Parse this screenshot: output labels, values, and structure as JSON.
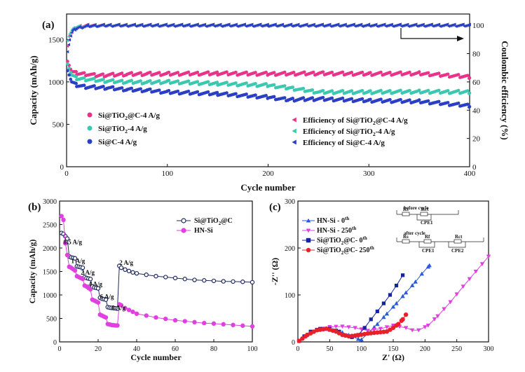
{
  "chart_data": [
    {
      "panel": "(a)",
      "type": "scatter",
      "xlabel": "Cycle number",
      "ylabel": "Capacity (mAh/g)",
      "ylabel_right": "Coulombic efficiency (%)",
      "xlim": [
        0,
        400
      ],
      "ylim": [
        0,
        1800
      ],
      "ylim_right": [
        0,
        108
      ],
      "xticks": [
        "0",
        "100",
        "200",
        "300",
        "400"
      ],
      "yticks": [
        "0",
        "500",
        "1000",
        "1500"
      ],
      "yticks_right": [
        "0",
        "20",
        "40",
        "60",
        "80",
        "100"
      ],
      "series": [
        {
          "name": "Si@TiO₂@C-4 A/g",
          "sub_base": "Si@TiO",
          "sub": "2",
          "sub_rest": "@C-4 A/g",
          "color": "#e8338a",
          "marker": "circle",
          "axis": "left",
          "x": [
            1,
            5,
            10,
            20,
            30,
            40,
            60,
            80,
            100,
            150,
            200,
            250,
            300,
            350,
            380,
            400
          ],
          "y": [
            1260,
            1120,
            1100,
            1090,
            1075,
            1080,
            1090,
            1095,
            1095,
            1100,
            1095,
            1100,
            1095,
            1100,
            1075,
            1060
          ]
        },
        {
          "name": "Si@TiO₂-4 A/g",
          "sub_base": "Si@TiO",
          "sub": "2",
          "sub_rest": "-4 A/g",
          "color": "#3cc8b0",
          "marker": "circle",
          "axis": "left",
          "x": [
            1,
            5,
            10,
            20,
            40,
            60,
            80,
            100,
            150,
            200,
            220,
            250,
            300,
            350,
            400
          ],
          "y": [
            1230,
            1080,
            1040,
            1030,
            1010,
            1000,
            995,
            1000,
            980,
            960,
            930,
            880,
            880,
            885,
            880
          ]
        },
        {
          "name": "Si@C-4 A/g",
          "color": "#2a3fc4",
          "marker": "circle",
          "axis": "left",
          "x": [
            1,
            5,
            10,
            20,
            40,
            60,
            80,
            100,
            150,
            200,
            220,
            250,
            300,
            350,
            400
          ],
          "y": [
            1150,
            1000,
            960,
            940,
            930,
            910,
            900,
            880,
            860,
            820,
            790,
            800,
            780,
            770,
            720
          ]
        },
        {
          "name": "Efficiency of Si@TiO₂@C-4 A/g",
          "sub_base": "Efficiency of Si@TiO",
          "sub": "2",
          "sub_rest": "@C-4 A/g",
          "color": "#e8338a",
          "marker": "tri-left",
          "axis": "right",
          "x": [
            1,
            3,
            6,
            10,
            20,
            40,
            100,
            200,
            300,
            400
          ],
          "y": [
            86,
            93,
            97,
            99,
            100,
            100,
            100,
            100,
            100,
            100
          ]
        },
        {
          "name": "Efficiency of Si@TiO₂-4 A/g",
          "sub_base": "Efficiency of Si@TiO",
          "sub": "2",
          "sub_rest": "-4 A/g",
          "color": "#3cc8b0",
          "marker": "tri-left",
          "axis": "right",
          "x": [
            1,
            3,
            6,
            10,
            20,
            40,
            100,
            200,
            300,
            400
          ],
          "y": [
            90,
            94,
            97,
            99,
            99.5,
            100,
            100,
            100,
            100,
            100
          ]
        },
        {
          "name": "Efficiency of Si@C-4 A/g",
          "color": "#2a3fc4",
          "marker": "tri-left",
          "axis": "right",
          "x": [
            1,
            3,
            6,
            10,
            20,
            40,
            100,
            200,
            300,
            400
          ],
          "y": [
            82,
            90,
            96,
            98,
            99.5,
            100,
            100,
            100,
            100,
            100
          ]
        }
      ]
    },
    {
      "panel": "(b)",
      "type": "line",
      "xlabel": "Cycle number",
      "ylabel": "Capacity (mAh/g)",
      "xlim": [
        0,
        100
      ],
      "ylim": [
        0,
        3000
      ],
      "xticks": [
        "0",
        "20",
        "40",
        "60",
        "80",
        "100"
      ],
      "yticks": [
        "0",
        "500",
        "1000",
        "1500",
        "2000",
        "2500",
        "3000"
      ],
      "rate_labels": [
        {
          "text": "0.5 A/g",
          "x": 2,
          "y": 2080
        },
        {
          "text": "1 A/g",
          "x": 6,
          "y": 1680
        },
        {
          "text": "2 A/g",
          "x": 11,
          "y": 1430
        },
        {
          "text": "4 A/g",
          "x": 15,
          "y": 1190
        },
        {
          "text": "6 A/g",
          "x": 21,
          "y": 920
        },
        {
          "text": "8 A/g",
          "x": 27,
          "y": 680
        },
        {
          "text": "2 A/g",
          "x": 31,
          "y": 1640
        }
      ],
      "series": [
        {
          "name": "Si@TiO₂@C",
          "sub_base": "Si@TiO",
          "sub": "2",
          "sub_rest": "@C",
          "color": "#1f2a5e",
          "marker": "circle",
          "x": [
            1,
            2,
            3,
            4,
            5,
            6,
            7,
            8,
            9,
            10,
            11,
            12,
            13,
            14,
            15,
            16,
            17,
            18,
            19,
            20,
            21,
            22,
            23,
            24,
            25,
            26,
            27,
            28,
            29,
            30,
            31,
            32,
            34,
            36,
            38,
            40,
            45,
            50,
            55,
            60,
            65,
            70,
            75,
            80,
            85,
            90,
            95,
            100
          ],
          "y": [
            2320,
            2300,
            2250,
            2200,
            1820,
            1800,
            1790,
            1780,
            1610,
            1600,
            1590,
            1580,
            1380,
            1360,
            1350,
            1340,
            1180,
            1160,
            1150,
            1140,
            940,
            920,
            910,
            900,
            740,
            730,
            725,
            720,
            715,
            710,
            1620,
            1580,
            1540,
            1510,
            1480,
            1460,
            1430,
            1400,
            1380,
            1360,
            1340,
            1320,
            1310,
            1300,
            1290,
            1285,
            1280,
            1270
          ]
        },
        {
          "name": "HN-Si",
          "color": "#e040e0",
          "marker": "circle",
          "x": [
            1,
            2,
            3,
            4,
            5,
            6,
            7,
            8,
            9,
            10,
            11,
            12,
            13,
            14,
            15,
            16,
            17,
            18,
            19,
            20,
            21,
            22,
            23,
            24,
            25,
            26,
            27,
            28,
            29,
            30,
            31,
            32,
            34,
            36,
            38,
            40,
            45,
            50,
            55,
            60,
            65,
            70,
            75,
            80,
            85,
            90,
            95,
            100
          ],
          "y": [
            2680,
            2600,
            2100,
            1850,
            1600,
            1580,
            1550,
            1520,
            1400,
            1380,
            1360,
            1340,
            1200,
            1180,
            1150,
            1120,
            900,
            880,
            860,
            840,
            580,
            560,
            540,
            520,
            380,
            370,
            360,
            355,
            350,
            350,
            800,
            780,
            720,
            680,
            640,
            600,
            560,
            520,
            490,
            460,
            440,
            420,
            400,
            390,
            375,
            360,
            345,
            330
          ]
        }
      ]
    },
    {
      "panel": "(c)",
      "type": "scatter",
      "xlabel": "Z' (Ω)",
      "ylabel": "-Z'' (Ω)",
      "xlim": [
        0,
        300
      ],
      "ylim": [
        0,
        300
      ],
      "xticks": [
        "0",
        "50",
        "100",
        "150",
        "200",
        "250",
        "300"
      ],
      "yticks": [
        "0",
        "100",
        "200",
        "300"
      ],
      "circuit_labels": {
        "before": "before cycle",
        "after": "after cycle",
        "r1": "Rs",
        "r2": "Rct",
        "cpe1": "CPE1",
        "r3": "Rf",
        "cpe2": "CPE2"
      },
      "series": [
        {
          "name": "HN-Si - 0th",
          "base": "HN-Si - 0",
          "sup": "th",
          "color": "#2a5ad8",
          "marker": "tri-up",
          "x": [
            2,
            10,
            20,
            30,
            40,
            55,
            70,
            85,
            95,
            100,
            110,
            125,
            140,
            155,
            170,
            185,
            195,
            207
          ],
          "y": [
            2,
            12,
            20,
            25,
            27,
            25,
            20,
            12,
            6,
            5,
            18,
            38,
            60,
            82,
            105,
            128,
            145,
            163
          ]
        },
        {
          "name": "HN-Si - 250th",
          "base": "HN-Si - 250",
          "sup": "th",
          "color": "#e040e0",
          "marker": "tri-down",
          "x": [
            2,
            15,
            30,
            50,
            70,
            90,
            110,
            130,
            150,
            170,
            180,
            190,
            205,
            220,
            240,
            260,
            280,
            300
          ],
          "y": [
            2,
            15,
            25,
            32,
            33,
            30,
            24,
            28,
            35,
            30,
            25,
            25,
            35,
            55,
            85,
            118,
            150,
            182
          ]
        },
        {
          "name": "Si@TiO₂@C- 0th",
          "base": "Si@TiO",
          "sub": "2",
          "mid": "@C- 0",
          "sup": "th",
          "color": "#16249c",
          "marker": "square",
          "x": [
            2,
            10,
            20,
            35,
            50,
            65,
            75,
            85,
            95,
            105,
            115,
            125,
            135,
            145,
            155,
            165
          ],
          "y": [
            2,
            12,
            22,
            28,
            28,
            22,
            14,
            10,
            15,
            30,
            48,
            65,
            82,
            100,
            120,
            142
          ]
        },
        {
          "name": "Si@TiO₂@C- 250th",
          "base": "Si@TiO",
          "sub": "2",
          "mid": "@C- 250",
          "sup": "th",
          "color": "#e8202a",
          "marker": "circle",
          "x": [
            2,
            15,
            30,
            45,
            60,
            70,
            80,
            95,
            110,
            125,
            140,
            150,
            158,
            165,
            170
          ],
          "y": [
            2,
            15,
            25,
            28,
            22,
            15,
            12,
            14,
            18,
            20,
            22,
            30,
            38,
            48,
            58
          ]
        }
      ]
    }
  ]
}
